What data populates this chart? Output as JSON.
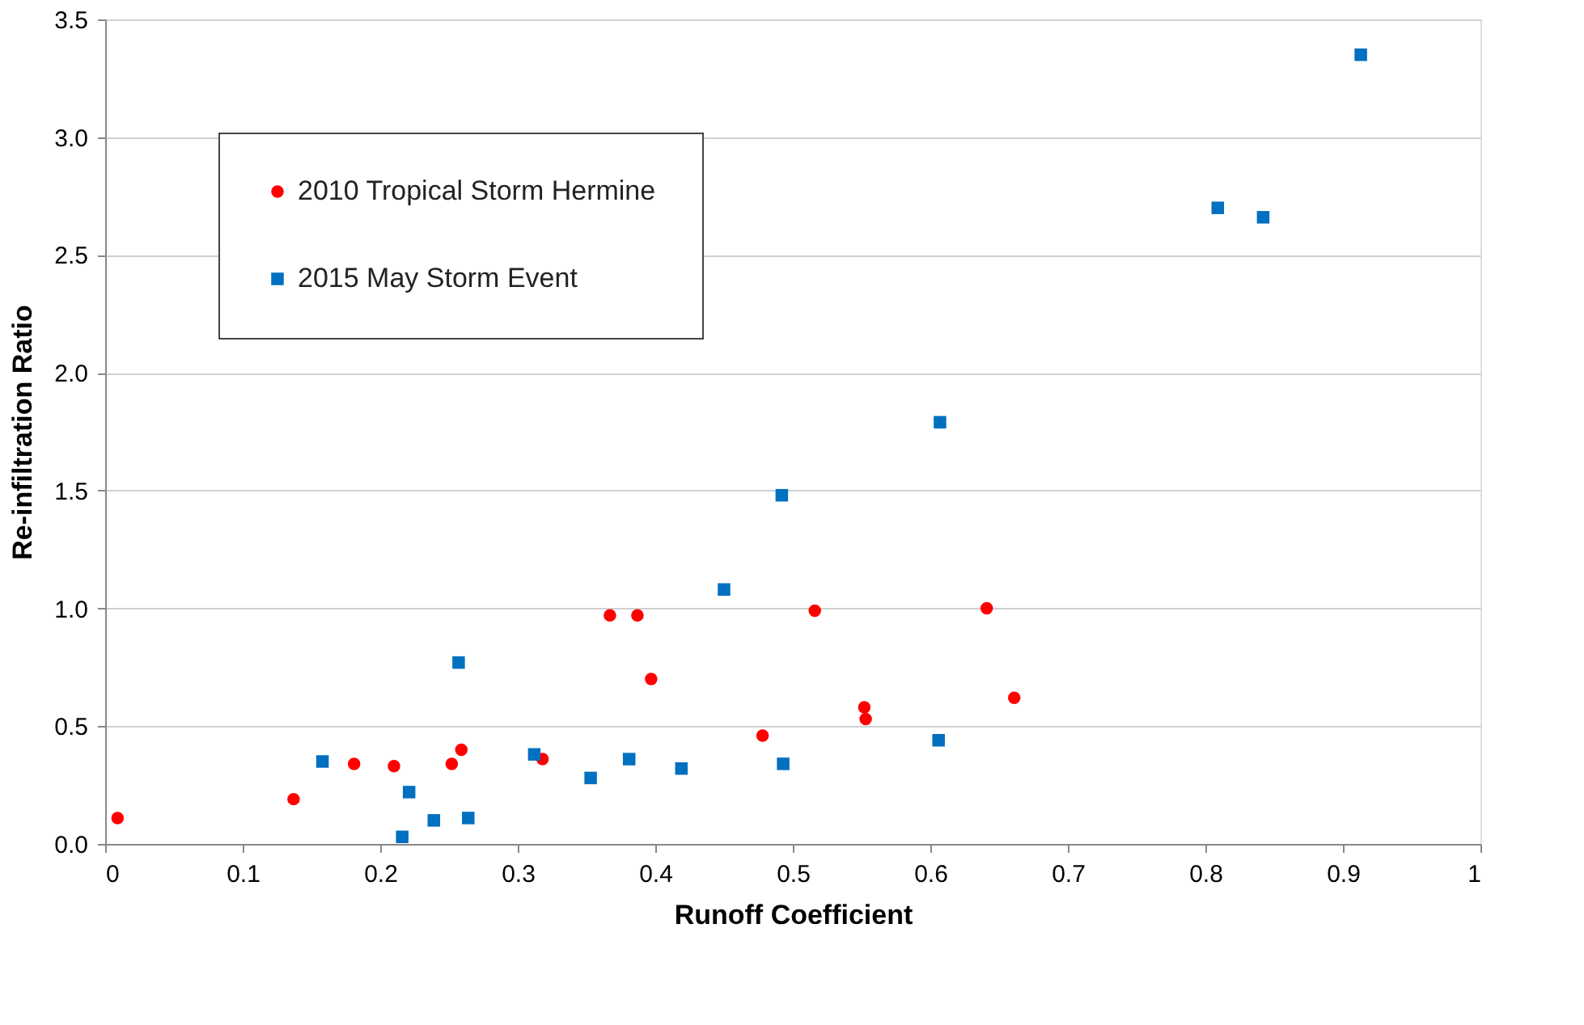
{
  "chart_data": {
    "type": "scatter",
    "xlabel": "Runoff Coefficient",
    "ylabel": "Re-infiltration Ratio",
    "xlim": [
      0,
      1
    ],
    "xticks": [
      0,
      0.1,
      0.2,
      0.3,
      0.4,
      0.5,
      0.6,
      0.7,
      0.8,
      0.9,
      1
    ],
    "ylim": [
      0,
      3.5
    ],
    "yticks": [
      {
        "value": 0,
        "label": "0.0"
      },
      0.5,
      {
        "value": 1,
        "label": "1.0"
      },
      1.5,
      {
        "value": 2,
        "label": "2.0"
      },
      2.5,
      {
        "value": 3,
        "label": "3.0"
      },
      3.5
    ],
    "grid": "y",
    "legend": "top left",
    "series": [
      {
        "name": "2010 Tropical Storm Hermine",
        "color": "#ff0000",
        "marker": "circle",
        "x": [
          0.009,
          0.137,
          0.181,
          0.21,
          0.252,
          0.259,
          0.318,
          0.367,
          0.387,
          0.397,
          0.478,
          0.516,
          0.552,
          0.553,
          0.641,
          0.661
        ],
        "values": [
          0.11,
          0.19,
          0.34,
          0.33,
          0.34,
          0.4,
          0.36,
          0.97,
          0.97,
          0.7,
          0.46,
          0.99,
          0.58,
          0.53,
          1.0,
          0.62
        ]
      },
      {
        "name": "2015 May Storm Event",
        "color": "#0070c0",
        "marker": "square",
        "x": [
          0.158,
          0.216,
          0.221,
          0.239,
          0.257,
          0.264,
          0.312,
          0.353,
          0.381,
          0.419,
          0.45,
          0.492,
          0.493,
          0.606,
          0.607,
          0.809,
          0.842,
          0.913
        ],
        "values": [
          0.35,
          0.03,
          0.22,
          0.1,
          0.77,
          0.11,
          0.38,
          0.28,
          0.36,
          0.32,
          1.08,
          1.48,
          0.34,
          0.44,
          1.79,
          2.7,
          2.66,
          3.35
        ]
      }
    ]
  }
}
